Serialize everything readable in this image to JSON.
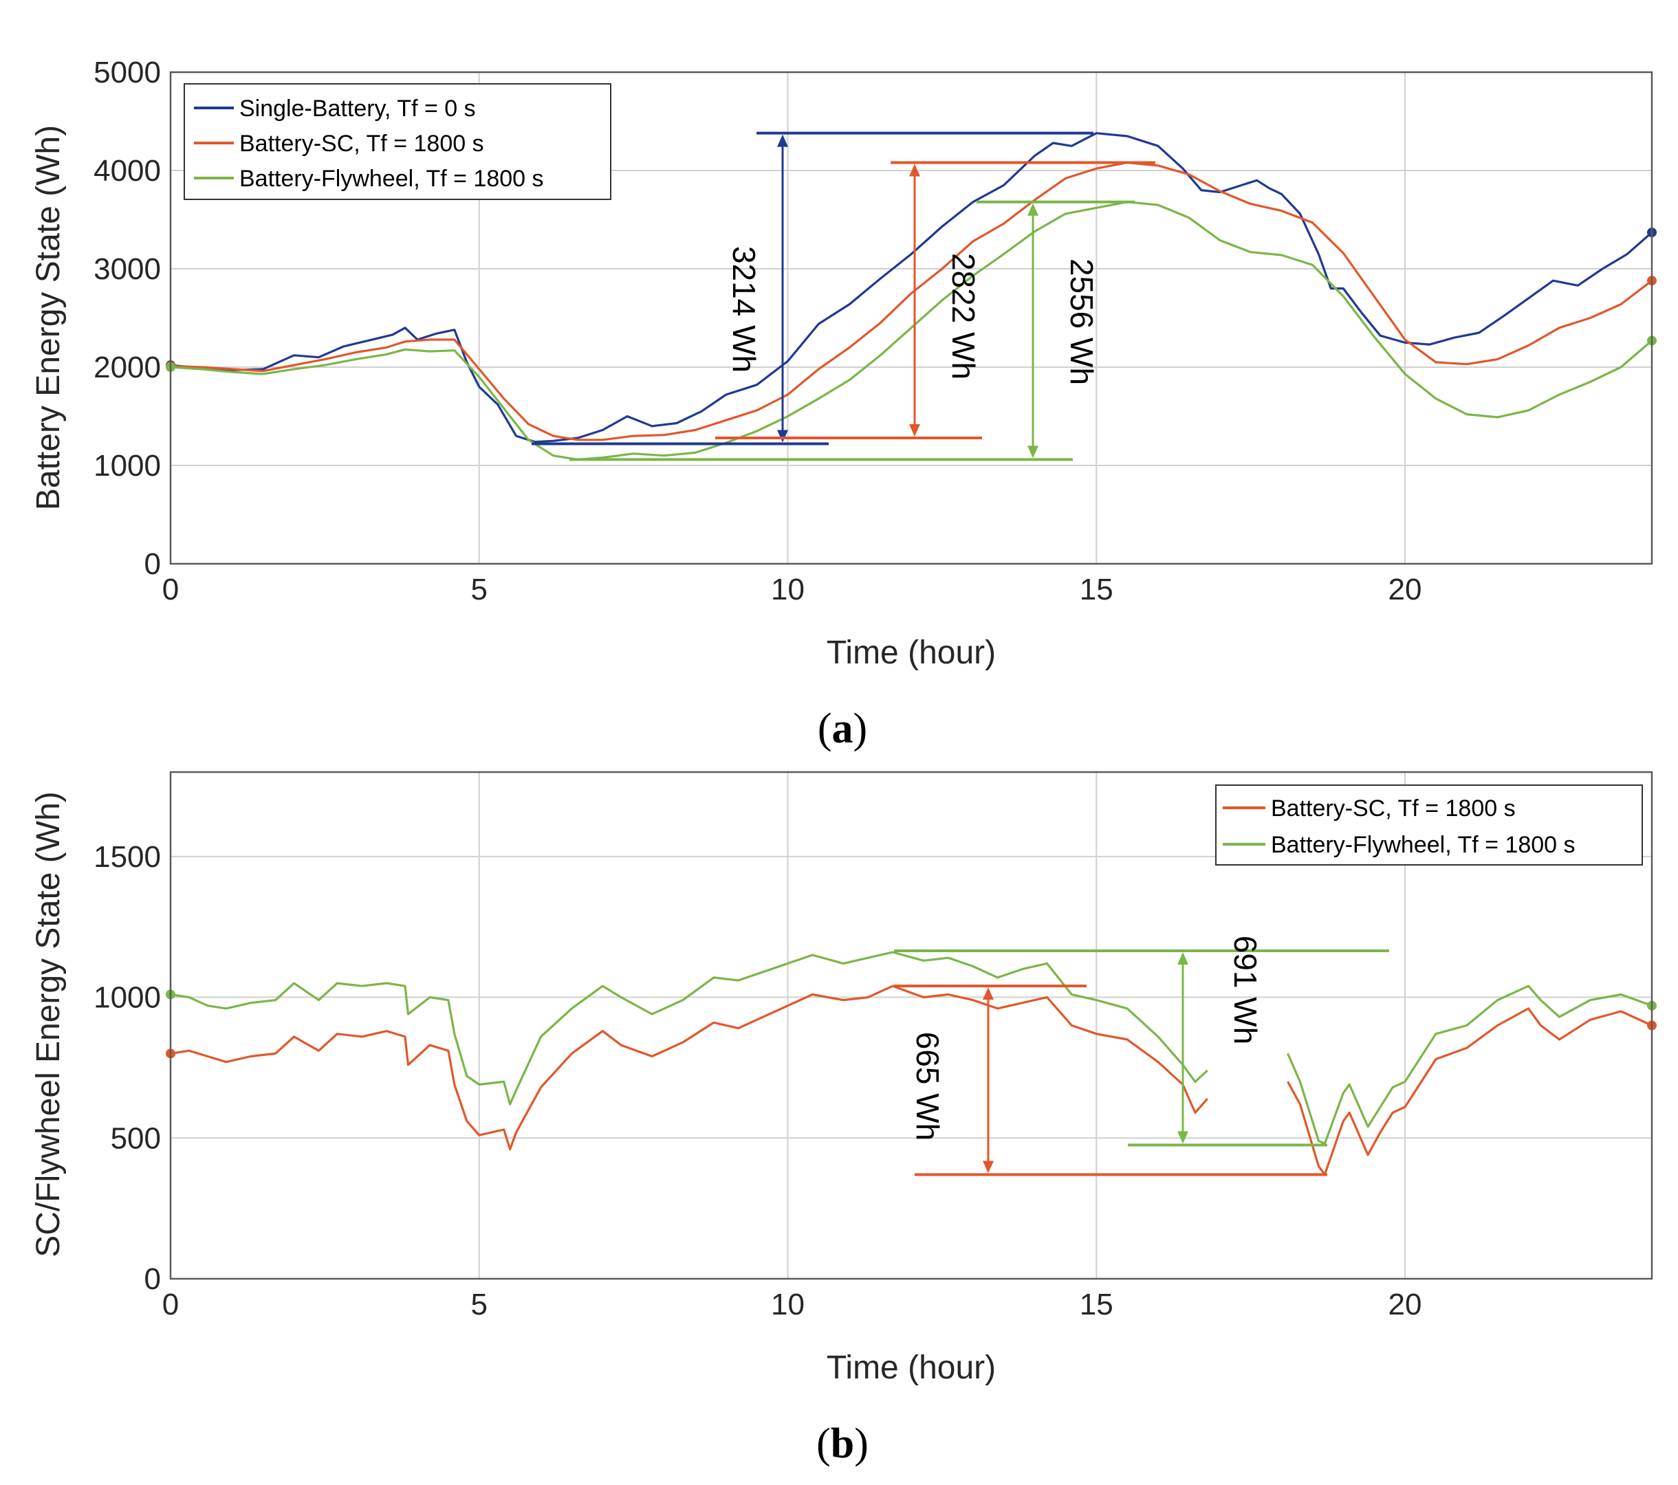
{
  "colors": {
    "single_battery": "#1f3a93",
    "battery_sc": "#e2572a",
    "battery_flywheel": "#7ab648"
  },
  "chart_data": [
    {
      "type": "line",
      "panel_label": "a",
      "title": "",
      "xlabel": "Time (hour)",
      "ylabel": "Battery Energy State (Wh)",
      "xlim": [
        0,
        24
      ],
      "ylim": [
        0,
        5000
      ],
      "xticks": [
        "0",
        "5",
        "10",
        "15",
        "20"
      ],
      "yticks": [
        "0",
        "1000",
        "2000",
        "3000",
        "4000",
        "5000"
      ],
      "grid": true,
      "legend_position": "top-left",
      "series": [
        {
          "name": "Single-Battery, Tf = 0 s",
          "color_key": "single_battery",
          "x": [
            0,
            0.5,
            1,
            1.5,
            2,
            2.4,
            2.8,
            3.2,
            3.6,
            3.8,
            4,
            4.3,
            4.6,
            4.8,
            5,
            5.3,
            5.6,
            5.9,
            6.2,
            6.6,
            7,
            7.4,
            7.8,
            8.2,
            8.6,
            9,
            9.5,
            10,
            10.5,
            11,
            11.5,
            12,
            12.5,
            13,
            13.5,
            14,
            14.3,
            14.6,
            15,
            15.5,
            16,
            16.4,
            16.7,
            17,
            17.3,
            17.6,
            17.8,
            18,
            18.3,
            18.6,
            18.8,
            19,
            19.3,
            19.6,
            20,
            20.4,
            20.8,
            21.2,
            21.6,
            22,
            22.4,
            22.8,
            23.2,
            23.6,
            24
          ],
          "y": [
            2020,
            1990,
            1970,
            1980,
            2120,
            2100,
            2210,
            2270,
            2330,
            2400,
            2280,
            2340,
            2380,
            2050,
            1800,
            1620,
            1300,
            1240,
            1250,
            1280,
            1360,
            1500,
            1400,
            1430,
            1550,
            1720,
            1820,
            2060,
            2440,
            2640,
            2900,
            3150,
            3430,
            3680,
            3850,
            4150,
            4280,
            4250,
            4380,
            4350,
            4250,
            4020,
            3800,
            3780,
            3840,
            3900,
            3820,
            3760,
            3560,
            3150,
            2800,
            2800,
            2550,
            2320,
            2250,
            2230,
            2300,
            2350,
            2520,
            2700,
            2880,
            2830,
            3000,
            3150,
            3370
          ]
        },
        {
          "name": "Battery-SC, Tf = 1800 s",
          "color_key": "battery_sc",
          "x": [
            0,
            0.5,
            1,
            1.5,
            2,
            2.5,
            3,
            3.5,
            3.8,
            4.2,
            4.6,
            5,
            5.4,
            5.8,
            6.2,
            6.6,
            7,
            7.5,
            8,
            8.5,
            9,
            9.5,
            10,
            10.5,
            11,
            11.5,
            12,
            12.5,
            13,
            13.5,
            14,
            14.5,
            15,
            15.5,
            16,
            16.5,
            17,
            17.5,
            18,
            18.5,
            19,
            19.5,
            20,
            20.5,
            21,
            21.5,
            22,
            22.5,
            23,
            23.5,
            24
          ],
          "y": [
            2010,
            2000,
            1980,
            1960,
            2020,
            2080,
            2150,
            2200,
            2260,
            2280,
            2280,
            1980,
            1680,
            1420,
            1300,
            1260,
            1260,
            1300,
            1310,
            1360,
            1460,
            1560,
            1720,
            1980,
            2200,
            2450,
            2750,
            3000,
            3280,
            3460,
            3700,
            3920,
            4020,
            4080,
            4050,
            3960,
            3790,
            3660,
            3590,
            3470,
            3160,
            2720,
            2280,
            2050,
            2030,
            2080,
            2220,
            2400,
            2500,
            2640,
            2880
          ]
        },
        {
          "name": "Battery-Flywheel, Tf = 1800 s",
          "color_key": "battery_flywheel",
          "x": [
            0,
            0.5,
            1,
            1.5,
            2,
            2.5,
            3,
            3.5,
            3.8,
            4.2,
            4.6,
            5,
            5.4,
            5.8,
            6.2,
            6.6,
            7,
            7.5,
            8,
            8.5,
            9,
            9.5,
            10,
            10.5,
            11,
            11.5,
            12,
            12.5,
            13,
            13.5,
            14,
            14.5,
            15,
            15.5,
            16,
            16.5,
            17,
            17.5,
            18,
            18.5,
            19,
            19.5,
            20,
            20.5,
            21,
            21.5,
            22,
            22.5,
            23,
            23.5,
            24
          ],
          "y": [
            2000,
            1980,
            1950,
            1930,
            1980,
            2020,
            2080,
            2130,
            2180,
            2160,
            2170,
            1900,
            1580,
            1260,
            1100,
            1060,
            1080,
            1120,
            1100,
            1130,
            1230,
            1350,
            1500,
            1680,
            1870,
            2120,
            2400,
            2680,
            2930,
            3150,
            3380,
            3560,
            3620,
            3680,
            3650,
            3520,
            3290,
            3170,
            3140,
            3040,
            2720,
            2310,
            1930,
            1680,
            1520,
            1490,
            1560,
            1720,
            1850,
            2000,
            2270
          ]
        }
      ],
      "annotations": [
        {
          "label": "3214 Wh",
          "color_key": "single_battery",
          "value": 3214,
          "max_y": 4380,
          "min_y": 1220
        },
        {
          "label": "2822 Wh",
          "color_key": "battery_sc",
          "value": 2822,
          "max_y": 4080,
          "min_y": 1280
        },
        {
          "label": "2556 Wh",
          "color_key": "battery_flywheel",
          "value": 2556,
          "max_y": 3680,
          "min_y": 1060
        }
      ]
    },
    {
      "type": "line",
      "panel_label": "b",
      "title": "",
      "xlabel": "Time (hour)",
      "ylabel": "SC/Flywheel Energy State (Wh)",
      "xlim": [
        0,
        24
      ],
      "ylim": [
        0,
        1800
      ],
      "xticks": [
        "0",
        "5",
        "10",
        "15",
        "20"
      ],
      "yticks": [
        "0",
        "500",
        "1000",
        "1500"
      ],
      "grid": true,
      "legend_position": "top-right",
      "series": [
        {
          "name": "Battery-SC, Tf = 1800 s",
          "color_key": "battery_sc",
          "x": [
            0,
            0.3,
            0.6,
            0.9,
            1.3,
            1.7,
            2,
            2.4,
            2.7,
            3.1,
            3.5,
            3.8,
            3.85,
            4.2,
            4.5,
            4.6,
            4.8,
            5,
            5.4,
            5.5,
            5.6,
            6,
            6.5,
            7,
            7.3,
            7.8,
            8.3,
            8.8,
            9.2,
            9.6,
            10,
            10.4,
            10.9,
            11.3,
            11.7,
            12.2,
            12.6,
            13,
            13.4,
            13.8,
            14.2,
            14.6,
            15,
            15.5,
            16,
            16.4,
            16.6,
            16.8
          ],
          "y": [
            800,
            810,
            790,
            770,
            790,
            800,
            860,
            810,
            870,
            860,
            880,
            860,
            760,
            830,
            810,
            690,
            560,
            510,
            530,
            460,
            520,
            680,
            800,
            880,
            830,
            790,
            840,
            910,
            890,
            930,
            970,
            1010,
            990,
            1000,
            1040,
            1000,
            1010,
            990,
            960,
            980,
            1000,
            900,
            870,
            850,
            770,
            690,
            590,
            640
          ]
        },
        {
          "name": "Battery-SC (segment 2)",
          "color_key": "battery_sc",
          "hidden_in_legend": true,
          "x": [
            18.1,
            18.3,
            18.6,
            18.7,
            19,
            19.1,
            19.4,
            19.6,
            19.8,
            20,
            20.5,
            21,
            21.5,
            22,
            22.2,
            22.5,
            23,
            23.5,
            24
          ],
          "y": [
            700,
            620,
            400,
            370,
            560,
            590,
            440,
            520,
            590,
            610,
            780,
            820,
            900,
            960,
            900,
            850,
            920,
            950,
            900
          ]
        },
        {
          "name": "Battery-Flywheel, Tf = 1800 s",
          "color_key": "battery_flywheel",
          "x": [
            0,
            0.3,
            0.6,
            0.9,
            1.3,
            1.7,
            2,
            2.4,
            2.7,
            3.1,
            3.5,
            3.8,
            3.85,
            4.2,
            4.5,
            4.6,
            4.8,
            5,
            5.4,
            5.5,
            5.6,
            6,
            6.5,
            7,
            7.3,
            7.8,
            8.3,
            8.8,
            9.2,
            9.6,
            10,
            10.4,
            10.9,
            11.3,
            11.7,
            12.2,
            12.6,
            13,
            13.4,
            13.8,
            14.2,
            14.6,
            15,
            15.5,
            16,
            16.4,
            16.6,
            16.8
          ],
          "y": [
            1010,
            1000,
            970,
            960,
            980,
            990,
            1050,
            990,
            1050,
            1040,
            1050,
            1040,
            940,
            1000,
            990,
            870,
            720,
            690,
            700,
            620,
            670,
            860,
            960,
            1040,
            1000,
            940,
            990,
            1070,
            1060,
            1090,
            1120,
            1150,
            1120,
            1140,
            1160,
            1130,
            1140,
            1110,
            1070,
            1100,
            1120,
            1010,
            990,
            960,
            860,
            760,
            700,
            740
          ]
        },
        {
          "name": "Battery-Flywheel (segment 2)",
          "color_key": "battery_flywheel",
          "hidden_in_legend": true,
          "x": [
            18.1,
            18.3,
            18.6,
            18.7,
            19,
            19.1,
            19.4,
            19.6,
            19.8,
            20,
            20.5,
            21,
            21.5,
            22,
            22.2,
            22.5,
            23,
            23.5,
            24
          ],
          "y": [
            800,
            700,
            490,
            480,
            660,
            690,
            540,
            610,
            680,
            700,
            870,
            900,
            990,
            1040,
            990,
            930,
            990,
            1010,
            970
          ]
        }
      ],
      "annotations": [
        {
          "label": "665 Wh",
          "color_key": "battery_sc",
          "value": 665,
          "max_y": 1040,
          "min_y": 370
        },
        {
          "label": "691 Wh",
          "color_key": "battery_flywheel",
          "value": 691,
          "max_y": 1165,
          "min_y": 475
        }
      ]
    }
  ]
}
